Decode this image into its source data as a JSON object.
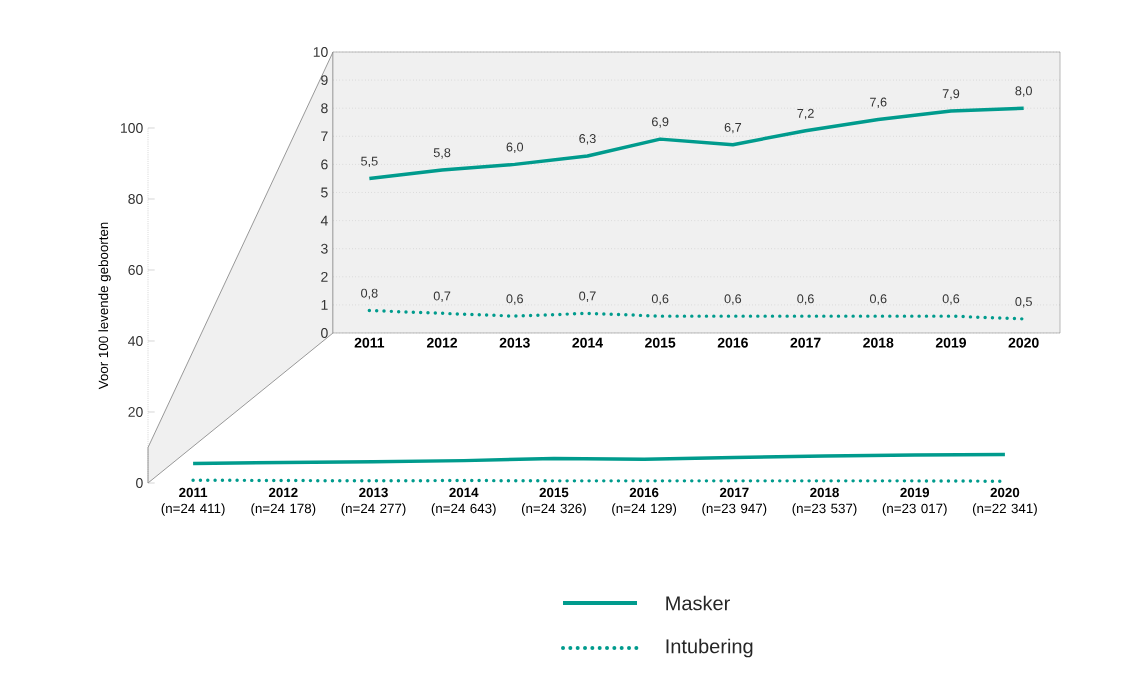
{
  "chart_data": [
    {
      "type": "line",
      "ylabel": "Voor 100 levende geboorten",
      "legend": "bottom",
      "categories": [
        "**2011**\n(n=24 411)",
        "**2012**\n(n=24 178)",
        "**2013**\n(n=24 277)",
        "**2014**\n(n=24 643)",
        "**2015**\n(n=24 326)",
        "**2016**\n(n=24 129)",
        "**2017**\n(n=23 947)",
        "**2018**\n(n=23 537)",
        "**2019**\n(n=23 017)",
        "**2020**\n(n=22 341)"
      ],
      "ylim": [
        0,
        100
      ],
      "yticks": [
        0,
        20,
        40,
        60,
        80,
        100
      ],
      "series": [
        {
          "name": "Masker",
          "color": "#009b8d",
          "line_style": "solid",
          "values": [
            5.5,
            5.8,
            6.0,
            6.3,
            6.9,
            6.7,
            7.2,
            7.6,
            7.9,
            8.0
          ]
        },
        {
          "name": "Intubering",
          "color": "#009b8d",
          "line_style": "dotted",
          "values": [
            0.8,
            0.7,
            0.6,
            0.7,
            0.6,
            0.6,
            0.6,
            0.6,
            0.6,
            0.5
          ]
        }
      ]
    },
    {
      "type": "line",
      "grid": "y",
      "categories": [
        "2011",
        "2012",
        "2013",
        "2014",
        "2015",
        "2016",
        "2017",
        "2018",
        "2019",
        "2020"
      ],
      "ylim": [
        0,
        10
      ],
      "yticks": [
        0,
        1,
        2,
        3,
        4,
        5,
        6,
        7,
        8,
        9,
        10
      ],
      "series": [
        {
          "color": "#009b8d",
          "line_style": "solid",
          "values": [
            5.5,
            5.8,
            6.0,
            6.3,
            6.9,
            6.7,
            7.2,
            7.6,
            7.9,
            8.0
          ],
          "value_labels": [
            "5,5",
            "5,8",
            "6,0",
            "6,3",
            "6,9",
            "6,7",
            "7,2",
            "7,6",
            "7,9",
            "8,0"
          ]
        },
        {
          "color": "#009b8d",
          "line_style": "dotted",
          "values": [
            0.8,
            0.7,
            0.6,
            0.7,
            0.6,
            0.6,
            0.6,
            0.6,
            0.6,
            0.5
          ],
          "value_labels": [
            "0,8",
            "0,7",
            "0,6",
            "0,7",
            "0,6",
            "0,6",
            "0,6",
            "0,6",
            "0,6",
            "0,5"
          ]
        }
      ]
    }
  ]
}
